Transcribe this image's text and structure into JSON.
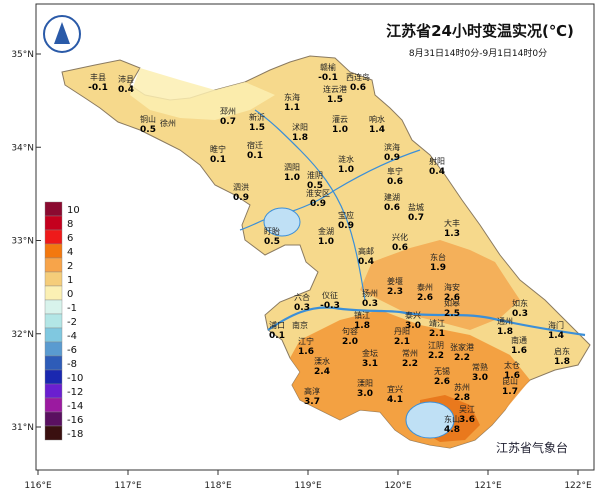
{
  "title": "江苏省24小时变温实况(℃)",
  "subtitle": "8月31日14时0分-9月1日14时0分",
  "credit": "江苏省气象台",
  "lat_ticks": [
    {
      "value": 35,
      "label": "35°N"
    },
    {
      "value": 34,
      "label": "34°N"
    },
    {
      "value": 33,
      "label": "33°N"
    },
    {
      "value": 32,
      "label": "32°N"
    },
    {
      "value": 31,
      "label": "31°N"
    }
  ],
  "lon_ticks": [
    {
      "value": 116,
      "label": "116°E"
    },
    {
      "value": 117,
      "label": "117°E"
    },
    {
      "value": 118,
      "label": "118°E"
    },
    {
      "value": 119,
      "label": "119°E"
    },
    {
      "value": 120,
      "label": "120°E"
    },
    {
      "value": 121,
      "label": "121°E"
    },
    {
      "value": 122,
      "label": "122°E"
    }
  ],
  "legend": {
    "labels": [
      10,
      8,
      6,
      4,
      2,
      1,
      0,
      -1,
      -2,
      -4,
      -6,
      -8,
      -10,
      -12,
      -14,
      -16,
      -18
    ],
    "colors": [
      "#8b0a30",
      "#c4001e",
      "#ee1a1a",
      "#f3780f",
      "#f7a44a",
      "#f5cd7a",
      "#fbf0b4",
      "#d8f3ec",
      "#b3e6e6",
      "#80c8e0",
      "#5a9bd0",
      "#2e5cb8",
      "#1a28b0",
      "#6a1fd0",
      "#9b1aa0",
      "#5a1060",
      "#3a1010"
    ]
  },
  "stations": [
    {
      "name": "丰县",
      "value": "-0.1"
    },
    {
      "name": "沛县",
      "value": "0.4"
    },
    {
      "name": "赣榆",
      "value": "-0.1"
    },
    {
      "name": "西连岛",
      "value": "0.6"
    },
    {
      "name": "连云港",
      "value": "1.5"
    },
    {
      "name": "东海",
      "value": "1.1"
    },
    {
      "name": "邳州",
      "value": "0.7"
    },
    {
      "name": "新沂",
      "value": "1.5"
    },
    {
      "name": "铜山",
      "value": "0.5"
    },
    {
      "name": "徐州",
      "value": null
    },
    {
      "name": "灌云",
      "value": "1.0"
    },
    {
      "name": "响水",
      "value": "1.4"
    },
    {
      "name": "沭阳",
      "value": "1.8"
    },
    {
      "name": "睢宁",
      "value": "0.1"
    },
    {
      "name": "宿迁",
      "value": "0.1"
    },
    {
      "name": "泗阳",
      "value": "1.0"
    },
    {
      "name": "淮阴",
      "value": "0.5"
    },
    {
      "name": "涟水",
      "value": "1.0"
    },
    {
      "name": "滨海",
      "value": "0.9"
    },
    {
      "name": "射阳",
      "value": "0.4"
    },
    {
      "name": "阜宁",
      "value": "0.6"
    },
    {
      "name": "泗洪",
      "value": "0.9"
    },
    {
      "name": "淮安区",
      "value": "0.9"
    },
    {
      "name": "金湖",
      "value": "1.0"
    },
    {
      "name": "宝应",
      "value": "0.9"
    },
    {
      "name": "建湖",
      "value": "0.6"
    },
    {
      "name": "盐城",
      "value": "0.7"
    },
    {
      "name": "盱眙",
      "value": "0.5"
    },
    {
      "name": "大丰",
      "value": "1.3"
    },
    {
      "name": "兴化",
      "value": "0.6"
    },
    {
      "name": "高邮",
      "value": "0.4"
    },
    {
      "name": "东台",
      "value": "1.9"
    },
    {
      "name": "海安",
      "value": "2.6"
    },
    {
      "name": "姜堰",
      "value": "2.3"
    },
    {
      "name": "泰州",
      "value": "2.6"
    },
    {
      "name": "六合",
      "value": "0.3"
    },
    {
      "name": "仪征",
      "value": "-0.3"
    },
    {
      "name": "扬州",
      "value": "0.3"
    },
    {
      "name": "泰兴",
      "value": "3.0"
    },
    {
      "name": "如皋",
      "value": "2.5"
    },
    {
      "name": "如东",
      "value": "0.3"
    },
    {
      "name": "浦口",
      "value": "0.1"
    },
    {
      "name": "南京",
      "value": null
    },
    {
      "name": "江宁",
      "value": "1.6"
    },
    {
      "name": "镇江",
      "value": "1.8"
    },
    {
      "name": "句容",
      "value": "2.0"
    },
    {
      "name": "丹阳",
      "value": "2.1"
    },
    {
      "name": "靖江",
      "value": "2.1"
    },
    {
      "name": "通州",
      "value": "1.8"
    },
    {
      "name": "海门",
      "value": "1.4"
    },
    {
      "name": "南通",
      "value": "1.6"
    },
    {
      "name": "启东",
      "value": "1.8"
    },
    {
      "name": "江阴",
      "value": "2.2"
    },
    {
      "name": "张家港",
      "value": "2.2"
    },
    {
      "name": "常州",
      "value": "2.2"
    },
    {
      "name": "金坛",
      "value": "3.1"
    },
    {
      "name": "溧水",
      "value": "2.4"
    },
    {
      "name": "无锡",
      "value": "2.6"
    },
    {
      "name": "常熟",
      "value": "3.0"
    },
    {
      "name": "太仓",
      "value": "1.6"
    },
    {
      "name": "昆山",
      "value": "1.7"
    },
    {
      "name": "溧阳",
      "value": "3.0"
    },
    {
      "name": "宜兴",
      "value": "4.1"
    },
    {
      "name": "高淳",
      "value": "3.7"
    },
    {
      "name": "苏州",
      "value": "2.8"
    },
    {
      "name": "吴江",
      "value": "3.6"
    },
    {
      "name": "东山",
      "value": "4.8"
    }
  ]
}
